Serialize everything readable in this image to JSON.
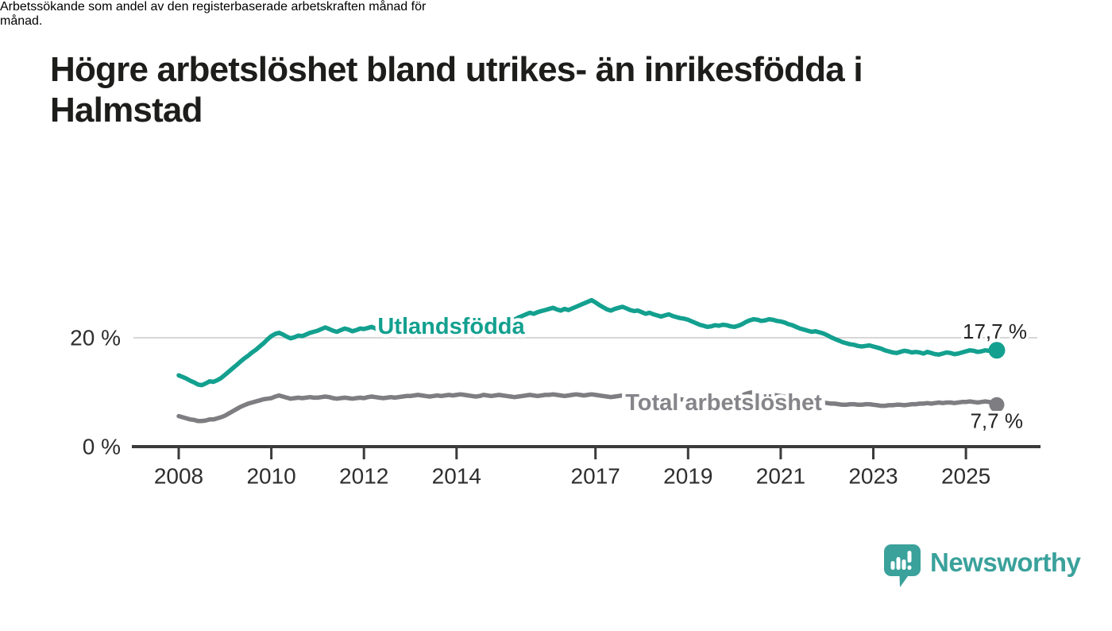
{
  "header": {
    "title": "Högre arbetslöshet bland utrikes- än inrikesfödda i Halmstad",
    "title_lines": [
      "Högre arbetslöshet bland utrikes- än inrikesfödda i",
      "Halmstad"
    ],
    "subtitle": "Arbetssökande som andel av den registerbaserade arbetskraften månad för månad.",
    "subtitle_lines": [
      "Arbetssökande som andel av den registerbaserade arbetskraften månad för",
      "månad."
    ]
  },
  "branding": {
    "name": "Newsworthy",
    "logo_icon": "speech-bubble-bar-chart-icon",
    "color": "#3aa19b"
  },
  "colors": {
    "foreign_born_line": "#13a08f",
    "total_line": "#7e7e82",
    "total_label": "#85858a",
    "gridline": "#d7d7d7",
    "axis": "#3b3b3b",
    "axis_text": "#2e2e2e",
    "value_text": "#222222",
    "background": "#ffffff"
  },
  "chart_data": {
    "type": "line",
    "title": "Högre arbetslöshet bland utrikes- än inrikesfödda i Halmstad",
    "subtitle": "Arbetssökande som andel av den registerbaserade arbetskraften månad för månad.",
    "xlabel": "",
    "ylabel": "",
    "grid": "horizontal, only at 20 %",
    "legend_position": "inline labels on lines",
    "x_axis": {
      "start_year": 2008,
      "step_months": 1,
      "tick_years": [
        2008,
        2010,
        2012,
        2014,
        2017,
        2019,
        2021,
        2023,
        2025
      ],
      "tick_labels": [
        "2008",
        "2010",
        "2012",
        "2014",
        "2017",
        "2019",
        "2021",
        "2023",
        "2025"
      ]
    },
    "y_axis": {
      "range": [
        0,
        28
      ],
      "ticks": [
        {
          "value": 0,
          "label": "0 %"
        },
        {
          "value": 20,
          "label": "20 %"
        }
      ],
      "grid_values": [
        20
      ]
    },
    "series": [
      {
        "name": "Utlandsfödda",
        "color": "#13a08f",
        "end_value": 17.7,
        "end_label": "17,7 %",
        "values": [
          13.1,
          12.8,
          12.5,
          12.1,
          11.8,
          11.4,
          11.3,
          11.6,
          12.0,
          11.9,
          12.2,
          12.6,
          13.2,
          13.8,
          14.4,
          15.0,
          15.6,
          16.2,
          16.7,
          17.3,
          17.8,
          18.4,
          19.0,
          19.7,
          20.3,
          20.7,
          20.9,
          20.6,
          20.2,
          19.9,
          20.1,
          20.4,
          20.3,
          20.6,
          20.9,
          21.1,
          21.3,
          21.6,
          21.9,
          21.6,
          21.3,
          21.1,
          21.4,
          21.7,
          21.5,
          21.2,
          21.4,
          21.7,
          21.6,
          21.8,
          22.0,
          21.7,
          21.4,
          21.2,
          21.5,
          21.8,
          21.6,
          21.4,
          21.6,
          21.8,
          21.7,
          21.9,
          22.1,
          21.8,
          21.5,
          21.4,
          21.7,
          22.0,
          21.8,
          21.6,
          21.8,
          22.0,
          21.9,
          22.1,
          22.3,
          22.0,
          21.8,
          21.6,
          21.9,
          22.2,
          22.1,
          22.3,
          22.5,
          22.7,
          22.9,
          23.2,
          23.5,
          23.3,
          23.7,
          24.0,
          24.3,
          24.6,
          24.4,
          24.7,
          24.9,
          25.1,
          25.3,
          25.5,
          25.2,
          25.0,
          25.3,
          25.1,
          25.4,
          25.7,
          26.0,
          26.3,
          26.6,
          26.9,
          26.5,
          26.0,
          25.6,
          25.2,
          25.0,
          25.3,
          25.5,
          25.7,
          25.4,
          25.1,
          24.9,
          25.0,
          24.7,
          24.4,
          24.6,
          24.3,
          24.1,
          23.9,
          24.1,
          24.3,
          24.0,
          23.8,
          23.6,
          23.5,
          23.3,
          23.0,
          22.7,
          22.4,
          22.2,
          22.0,
          22.1,
          22.3,
          22.2,
          22.4,
          22.3,
          22.1,
          22.0,
          22.2,
          22.5,
          22.9,
          23.2,
          23.4,
          23.3,
          23.1,
          23.2,
          23.4,
          23.3,
          23.1,
          23.0,
          22.8,
          22.5,
          22.3,
          22.0,
          21.7,
          21.5,
          21.3,
          21.1,
          21.2,
          21.0,
          20.8,
          20.5,
          20.1,
          19.8,
          19.5,
          19.2,
          19.0,
          18.8,
          18.7,
          18.5,
          18.4,
          18.5,
          18.6,
          18.4,
          18.2,
          18.0,
          17.7,
          17.5,
          17.3,
          17.2,
          17.4,
          17.6,
          17.5,
          17.3,
          17.4,
          17.3,
          17.1,
          17.4,
          17.2,
          17.0,
          16.9,
          17.1,
          17.3,
          17.2,
          17.0,
          17.1,
          17.3,
          17.5,
          17.7,
          17.6,
          17.4,
          17.5,
          17.7,
          17.6,
          17.7,
          17.7
        ]
      },
      {
        "name": "Total arbetslöshet",
        "color": "#7e7e82",
        "end_value": 7.7,
        "end_label": "7,7 %",
        "values": [
          5.6,
          5.4,
          5.2,
          5.0,
          4.9,
          4.7,
          4.7,
          4.8,
          5.0,
          5.0,
          5.2,
          5.4,
          5.7,
          6.1,
          6.5,
          6.9,
          7.3,
          7.6,
          7.9,
          8.1,
          8.3,
          8.5,
          8.7,
          8.8,
          8.9,
          9.2,
          9.4,
          9.2,
          9.0,
          8.8,
          8.9,
          9.0,
          8.9,
          9.0,
          9.1,
          9.0,
          9.0,
          9.1,
          9.2,
          9.1,
          8.9,
          8.8,
          8.9,
          9.0,
          8.9,
          8.8,
          8.9,
          9.0,
          8.9,
          9.1,
          9.2,
          9.1,
          9.0,
          8.9,
          9.0,
          9.1,
          9.0,
          9.1,
          9.2,
          9.3,
          9.3,
          9.4,
          9.5,
          9.4,
          9.3,
          9.2,
          9.3,
          9.4,
          9.3,
          9.4,
          9.5,
          9.4,
          9.5,
          9.6,
          9.5,
          9.4,
          9.3,
          9.2,
          9.3,
          9.5,
          9.4,
          9.3,
          9.4,
          9.5,
          9.4,
          9.3,
          9.2,
          9.1,
          9.2,
          9.3,
          9.4,
          9.5,
          9.4,
          9.3,
          9.4,
          9.5,
          9.5,
          9.6,
          9.5,
          9.4,
          9.3,
          9.4,
          9.5,
          9.6,
          9.5,
          9.4,
          9.5,
          9.6,
          9.5,
          9.4,
          9.3,
          9.2,
          9.1,
          9.2,
          9.3,
          9.4,
          9.3,
          9.2,
          9.1,
          9.0,
          8.9,
          8.8,
          8.9,
          8.8,
          8.7,
          8.6,
          8.7,
          8.8,
          8.7,
          8.6,
          8.7,
          8.6,
          8.7,
          8.6,
          8.5,
          8.4,
          8.5,
          8.6,
          8.7,
          8.6,
          8.5,
          8.6,
          8.7,
          8.8,
          8.9,
          9.1,
          9.4,
          9.7,
          9.9,
          10.0,
          9.9,
          9.8,
          9.7,
          9.6,
          9.5,
          9.4,
          9.3,
          9.2,
          9.1,
          8.9,
          8.7,
          8.6,
          8.5,
          8.4,
          8.3,
          8.2,
          8.1,
          8.1,
          8.0,
          7.9,
          7.9,
          7.8,
          7.7,
          7.7,
          7.8,
          7.8,
          7.7,
          7.7,
          7.8,
          7.8,
          7.7,
          7.6,
          7.5,
          7.5,
          7.6,
          7.6,
          7.7,
          7.7,
          7.6,
          7.7,
          7.8,
          7.8,
          7.9,
          7.9,
          8.0,
          7.9,
          8.0,
          8.1,
          8.0,
          8.1,
          8.1,
          8.0,
          8.1,
          8.2,
          8.2,
          8.3,
          8.2,
          8.1,
          8.2,
          8.3,
          8.2,
          8.0,
          7.7
        ]
      }
    ]
  }
}
